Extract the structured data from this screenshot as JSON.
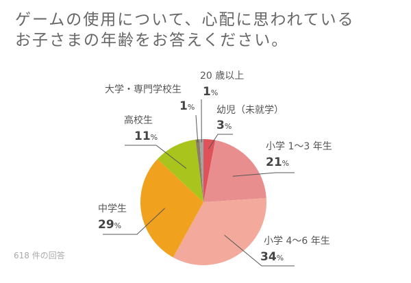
{
  "chart_data": {
    "type": "pie",
    "title": "ゲームの使用について、心配に思われているお子さまの年齢をお答えください。",
    "title_lines": [
      "ゲームの使用について、心配に思われている",
      "お子さまの年齢をお答えください。"
    ],
    "unit": "%",
    "slices": [
      {
        "label": "幼児（未就学）",
        "value": 3,
        "color": "#e0525a"
      },
      {
        "label": "小学 1〜3 年生",
        "value": 21,
        "color": "#e98e8e"
      },
      {
        "label": "小学 4〜6 年生",
        "value": 34,
        "color": "#f3aa9c"
      },
      {
        "label": "中学生",
        "value": 29,
        "color": "#f0a21e"
      },
      {
        "label": "高校生",
        "value": 11,
        "color": "#a9c41d"
      },
      {
        "label": "大学・専門学校生",
        "value": 1,
        "color": "#8c7d62"
      },
      {
        "label": "20 歳以上",
        "value": 1,
        "color": "#a3a3a3"
      }
    ],
    "start": "top",
    "direction": "clockwise",
    "note": "618 件の回答"
  }
}
